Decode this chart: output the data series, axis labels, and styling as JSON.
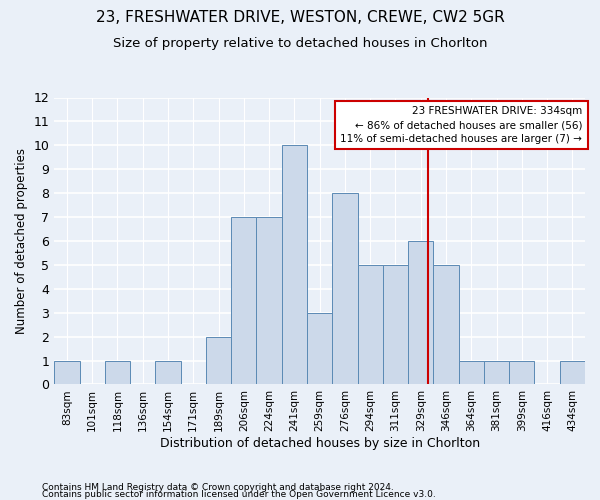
{
  "title": "23, FRESHWATER DRIVE, WESTON, CREWE, CW2 5GR",
  "subtitle": "Size of property relative to detached houses in Chorlton",
  "xlabel": "Distribution of detached houses by size in Chorlton",
  "ylabel": "Number of detached properties",
  "categories": [
    "83sqm",
    "101sqm",
    "118sqm",
    "136sqm",
    "154sqm",
    "171sqm",
    "189sqm",
    "206sqm",
    "224sqm",
    "241sqm",
    "259sqm",
    "276sqm",
    "294sqm",
    "311sqm",
    "329sqm",
    "346sqm",
    "364sqm",
    "381sqm",
    "399sqm",
    "416sqm",
    "434sqm"
  ],
  "values": [
    1,
    0,
    1,
    0,
    1,
    0,
    2,
    7,
    7,
    10,
    3,
    8,
    5,
    5,
    6,
    5,
    1,
    1,
    1,
    0,
    1
  ],
  "bar_color": "#ccd9ea",
  "bar_edge_color": "#5b8ab5",
  "ref_line_color": "#cc0000",
  "annotation_box_color": "#ffffff",
  "annotation_box_edge": "#cc0000",
  "ref_line_label": "23 FRESHWATER DRIVE: 334sqm",
  "annotation_line1": "← 86% of detached houses are smaller (56)",
  "annotation_line2": "11% of semi-detached houses are larger (7) →",
  "ylim": [
    0,
    12
  ],
  "yticks": [
    0,
    1,
    2,
    3,
    4,
    5,
    6,
    7,
    8,
    9,
    10,
    11,
    12
  ],
  "footer1": "Contains HM Land Registry data © Crown copyright and database right 2024.",
  "footer2": "Contains public sector information licensed under the Open Government Licence v3.0.",
  "bg_color": "#eaf0f8",
  "grid_color": "#ffffff",
  "title_fontsize": 11,
  "subtitle_fontsize": 9.5,
  "tick_fontsize": 7.5,
  "ylabel_fontsize": 8.5,
  "xlabel_fontsize": 9
}
